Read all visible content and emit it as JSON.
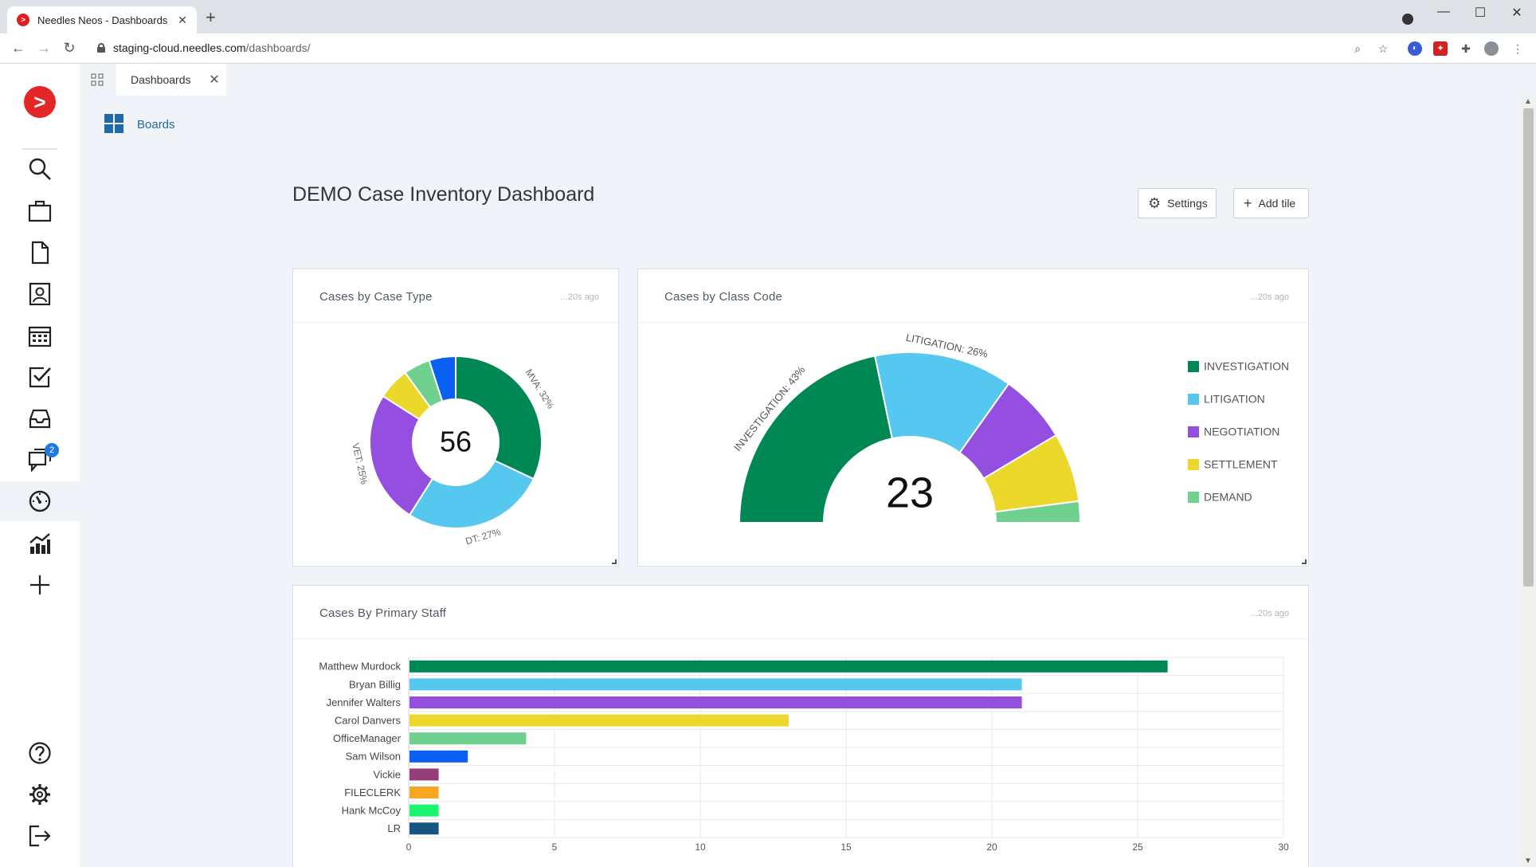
{
  "browser": {
    "tab_title": "Needles Neos - Dashboards",
    "url_host": "staging-cloud.needles.com",
    "url_path": "/dashboards/"
  },
  "sidebar": {
    "messages_badge": "2",
    "items": [
      {
        "name": "search-icon"
      },
      {
        "name": "briefcase-icon"
      },
      {
        "name": "document-icon"
      },
      {
        "name": "contact-icon"
      },
      {
        "name": "calendar-icon"
      },
      {
        "name": "checkbox-icon"
      },
      {
        "name": "inbox-icon"
      },
      {
        "name": "messages-icon"
      },
      {
        "name": "dashboard-icon"
      },
      {
        "name": "reports-icon"
      },
      {
        "name": "plus-icon"
      }
    ]
  },
  "app_tab": {
    "label": "Dashboards"
  },
  "breadcrumb": {
    "label": "Boards"
  },
  "page": {
    "title": "DEMO Case Inventory Dashboard",
    "settings_label": "Settings",
    "add_tile_label": "Add tile"
  },
  "tiles": {
    "case_type": {
      "title": "Cases by Case Type",
      "ago": "...20s ago",
      "total": "56"
    },
    "class_code": {
      "title": "Cases by Class Code",
      "ago": "...20s ago",
      "total": "23"
    },
    "staff": {
      "title": "Cases By Primary Staff",
      "ago": "...20s ago"
    }
  },
  "colors": {
    "green": "#008854",
    "cyan": "#56c8ef",
    "purple": "#944ee0",
    "yellow": "#ecd82a",
    "lightgreen": "#6fd08f",
    "blue": "#0a60f2",
    "magenta": "#963e7a",
    "orange": "#f7a823",
    "neon": "#1bf46e",
    "navy": "#175480"
  },
  "chart_data": [
    {
      "type": "pie",
      "title": "Cases by Case Type",
      "center_label": "56",
      "slices": [
        {
          "label": "MVA",
          "value": 32,
          "display": "MVA: 32%",
          "color": "#008854"
        },
        {
          "label": "DT",
          "value": 27,
          "display": "DT: 27%",
          "color": "#56c8ef"
        },
        {
          "label": "VET",
          "value": 25,
          "display": "VET: 25%",
          "color": "#944ee0"
        },
        {
          "label": "",
          "value": 6,
          "display": "",
          "color": "#ecd82a"
        },
        {
          "label": "",
          "value": 5,
          "display": "",
          "color": "#6fd08f"
        },
        {
          "label": "",
          "value": 5,
          "display": "",
          "color": "#0a60f2"
        }
      ]
    },
    {
      "type": "pie",
      "title": "Cases by Class Code",
      "center_label": "23",
      "slices": [
        {
          "label": "INVESTIGATION",
          "value": 43,
          "display": "INVESTIGATION: 43%",
          "color": "#008854"
        },
        {
          "label": "LITIGATION",
          "value": 26,
          "display": "LITIGATION: 26%",
          "color": "#56c8ef"
        },
        {
          "label": "NEGOTIATION",
          "value": 13,
          "display": "",
          "color": "#944ee0"
        },
        {
          "label": "SETTLEMENT",
          "value": 13,
          "display": "",
          "color": "#ecd82a"
        },
        {
          "label": "DEMAND",
          "value": 4,
          "display": "",
          "color": "#6fd08f"
        }
      ],
      "legend": [
        "INVESTIGATION",
        "LITIGATION",
        "NEGOTIATION",
        "SETTLEMENT",
        "DEMAND"
      ],
      "legend_position": "right"
    },
    {
      "type": "bar",
      "orientation": "horizontal",
      "title": "Cases By Primary Staff",
      "categories": [
        "Matthew Murdock",
        "Bryan Billig",
        "Jennifer Walters",
        "Carol Danvers",
        "OfficeManager",
        "Sam Wilson",
        "Vickie",
        "FILECLERK",
        "Hank McCoy",
        "LR"
      ],
      "values": [
        26,
        21,
        21,
        13,
        4,
        2,
        1,
        1,
        1,
        1
      ],
      "colors": [
        "#008854",
        "#56c8ef",
        "#944ee0",
        "#ecd82a",
        "#6fd08f",
        "#0a60f2",
        "#963e7a",
        "#f7a823",
        "#1bf46e",
        "#175480"
      ],
      "xlim": [
        0,
        30
      ],
      "xticks": [
        "0",
        "5",
        "10",
        "15",
        "20",
        "25",
        "30"
      ],
      "grid": true
    }
  ]
}
